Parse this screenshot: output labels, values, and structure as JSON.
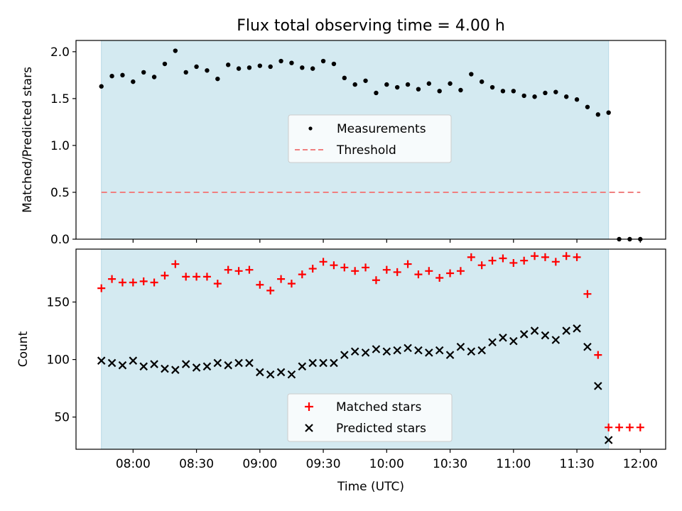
{
  "title": "Flux total observing time = 4.00 h",
  "chart_data": [
    {
      "type": "scatter",
      "ylabel": "Matched/Predicted stars",
      "ylim": [
        0,
        2.12
      ],
      "xlim": [
        "07:33",
        "12:12"
      ],
      "yticks": [
        0.0,
        0.5,
        1.0,
        1.5,
        2.0
      ],
      "ytick_labels": [
        "0.0",
        "0.5",
        "1.0",
        "1.5",
        "2.0"
      ],
      "shaded_region": {
        "x": [
          "07:45",
          "11:45"
        ],
        "color": "#d4eaf1"
      },
      "legend_position": "center",
      "series": [
        {
          "name": "Measurements",
          "marker": "dot",
          "color": "#000000",
          "x": [
            "07:45",
            "07:50",
            "07:55",
            "08:00",
            "08:05",
            "08:10",
            "08:15",
            "08:20",
            "08:25",
            "08:30",
            "08:35",
            "08:40",
            "08:45",
            "08:50",
            "08:55",
            "09:00",
            "09:05",
            "09:10",
            "09:15",
            "09:20",
            "09:25",
            "09:30",
            "09:35",
            "09:40",
            "09:45",
            "09:50",
            "09:55",
            "10:00",
            "10:05",
            "10:10",
            "10:15",
            "10:20",
            "10:25",
            "10:30",
            "10:35",
            "10:40",
            "10:45",
            "10:50",
            "10:55",
            "11:00",
            "11:05",
            "11:10",
            "11:15",
            "11:20",
            "11:25",
            "11:30",
            "11:35",
            "11:40",
            "11:45",
            "11:50",
            "11:55",
            "12:00"
          ],
          "y": [
            1.63,
            1.74,
            1.75,
            1.68,
            1.78,
            1.73,
            1.87,
            2.01,
            1.78,
            1.84,
            1.8,
            1.71,
            1.86,
            1.82,
            1.83,
            1.85,
            1.84,
            1.9,
            1.88,
            1.83,
            1.82,
            1.9,
            1.87,
            1.72,
            1.65,
            1.69,
            1.56,
            1.65,
            1.62,
            1.65,
            1.6,
            1.66,
            1.58,
            1.66,
            1.59,
            1.76,
            1.68,
            1.62,
            1.58,
            1.58,
            1.53,
            1.52,
            1.56,
            1.57,
            1.52,
            1.49,
            1.41,
            1.33,
            1.35,
            0.0,
            0.0,
            0.0
          ]
        },
        {
          "name": "Threshold",
          "style": "dashed",
          "color": "#f08080",
          "x": [
            "07:45",
            "12:00"
          ],
          "y": [
            0.5,
            0.5
          ]
        }
      ]
    },
    {
      "type": "scatter",
      "ylabel": "Count",
      "xlabel": "Time (UTC)",
      "ylim": [
        22,
        196
      ],
      "xlim": [
        "07:33",
        "12:12"
      ],
      "yticks": [
        50,
        100,
        150
      ],
      "ytick_labels": [
        "50",
        "100",
        "150"
      ],
      "xticks": [
        "08:00",
        "08:30",
        "09:00",
        "09:30",
        "10:00",
        "10:30",
        "11:00",
        "11:30",
        "12:00"
      ],
      "xtick_labels": [
        "08:00",
        "08:30",
        "09:00",
        "09:30",
        "10:00",
        "10:30",
        "11:00",
        "11:30",
        "12:00"
      ],
      "shaded_region": {
        "x": [
          "07:45",
          "11:45"
        ],
        "color": "#d4eaf1"
      },
      "legend_position": "lower center",
      "series": [
        {
          "name": "Matched stars",
          "marker": "plus",
          "color": "#ff0000",
          "x": [
            "07:45",
            "07:50",
            "07:55",
            "08:00",
            "08:05",
            "08:10",
            "08:15",
            "08:20",
            "08:25",
            "08:30",
            "08:35",
            "08:40",
            "08:45",
            "08:50",
            "08:55",
            "09:00",
            "09:05",
            "09:10",
            "09:15",
            "09:20",
            "09:25",
            "09:30",
            "09:35",
            "09:40",
            "09:45",
            "09:50",
            "09:55",
            "10:00",
            "10:05",
            "10:10",
            "10:15",
            "10:20",
            "10:25",
            "10:30",
            "10:35",
            "10:40",
            "10:45",
            "10:50",
            "10:55",
            "11:00",
            "11:05",
            "11:10",
            "11:15",
            "11:20",
            "11:25",
            "11:30",
            "11:35",
            "11:40",
            "11:45",
            "11:50",
            "11:55",
            "12:00"
          ],
          "y": [
            162,
            170,
            167,
            167,
            168,
            167,
            173,
            183,
            172,
            172,
            172,
            166,
            178,
            177,
            178,
            165,
            160,
            170,
            166,
            174,
            179,
            185,
            182,
            180,
            177,
            180,
            169,
            178,
            176,
            183,
            174,
            177,
            171,
            175,
            177,
            189,
            182,
            186,
            188,
            184,
            186,
            190,
            189,
            185,
            190,
            189,
            157,
            104,
            41,
            41,
            41,
            41
          ]
        },
        {
          "name": "Predicted stars",
          "marker": "x",
          "color": "#000000",
          "x": [
            "07:45",
            "07:50",
            "07:55",
            "08:00",
            "08:05",
            "08:10",
            "08:15",
            "08:20",
            "08:25",
            "08:30",
            "08:35",
            "08:40",
            "08:45",
            "08:50",
            "08:55",
            "09:00",
            "09:05",
            "09:10",
            "09:15",
            "09:20",
            "09:25",
            "09:30",
            "09:35",
            "09:40",
            "09:45",
            "09:50",
            "09:55",
            "10:00",
            "10:05",
            "10:10",
            "10:15",
            "10:20",
            "10:25",
            "10:30",
            "10:35",
            "10:40",
            "10:45",
            "10:50",
            "10:55",
            "11:00",
            "11:05",
            "11:10",
            "11:15",
            "11:20",
            "11:25",
            "11:30",
            "11:35",
            "11:40",
            "11:45"
          ],
          "y": [
            99,
            97,
            95,
            99,
            94,
            96,
            92,
            91,
            96,
            93,
            94,
            97,
            95,
            97,
            97,
            89,
            87,
            89,
            87,
            94,
            97,
            97,
            97,
            104,
            107,
            106,
            109,
            107,
            108,
            110,
            108,
            106,
            108,
            104,
            111,
            107,
            108,
            115,
            119,
            116,
            122,
            125,
            121,
            117,
            125,
            127,
            111,
            77,
            30
          ]
        }
      ]
    }
  ]
}
